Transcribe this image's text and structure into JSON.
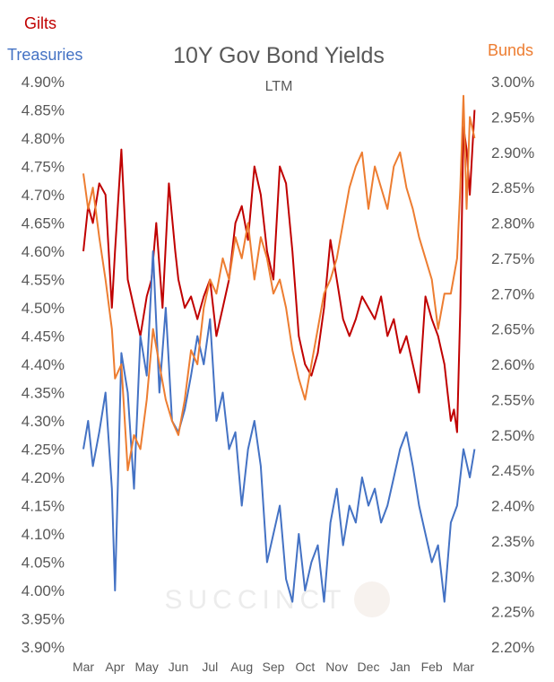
{
  "chart_data": {
    "type": "line",
    "title": "10Y Gov Bond Yields",
    "subtitle": "LTM",
    "watermark": "SUCCINCT",
    "categories": [
      "Mar",
      "Apr",
      "May",
      "Jun",
      "Jul",
      "Aug",
      "Sep",
      "Oct",
      "Nov",
      "Dec",
      "Jan",
      "Feb",
      "Mar"
    ],
    "left_axis": {
      "ylim": [
        3.9,
        4.9
      ],
      "ticks": [
        "3.90%",
        "3.95%",
        "4.00%",
        "4.05%",
        "4.10%",
        "4.15%",
        "4.20%",
        "4.25%",
        "4.30%",
        "4.35%",
        "4.40%",
        "4.45%",
        "4.50%",
        "4.55%",
        "4.60%",
        "4.65%",
        "4.70%",
        "4.75%",
        "4.80%",
        "4.85%",
        "4.90%"
      ]
    },
    "right_axis": {
      "ylim": [
        2.2,
        3.0
      ],
      "ticks": [
        "2.20%",
        "2.25%",
        "2.30%",
        "2.35%",
        "2.40%",
        "2.45%",
        "2.50%",
        "2.55%",
        "2.60%",
        "2.65%",
        "2.70%",
        "2.75%",
        "2.80%",
        "2.85%",
        "2.90%",
        "2.95%",
        "3.00%"
      ]
    },
    "series": [
      {
        "name": "Gilts",
        "axis": "left",
        "color": "#C00000",
        "x": [
          0,
          0.15,
          0.3,
          0.5,
          0.7,
          0.9,
          1.0,
          1.2,
          1.4,
          1.6,
          1.8,
          2.0,
          2.15,
          2.3,
          2.5,
          2.7,
          2.9,
          3.0,
          3.2,
          3.4,
          3.6,
          3.8,
          4.0,
          4.2,
          4.4,
          4.6,
          4.8,
          5.0,
          5.2,
          5.4,
          5.6,
          5.8,
          6.0,
          6.2,
          6.4,
          6.6,
          6.8,
          7.0,
          7.2,
          7.4,
          7.6,
          7.8,
          8.0,
          8.2,
          8.4,
          8.6,
          8.8,
          9.0,
          9.2,
          9.4,
          9.6,
          9.8,
          10.0,
          10.2,
          10.4,
          10.6,
          10.8,
          11.0,
          11.2,
          11.4,
          11.5,
          11.6,
          11.7,
          11.8,
          11.9,
          12.0,
          12.1,
          12.2,
          12.35
        ],
        "values": [
          4.6,
          4.68,
          4.65,
          4.72,
          4.7,
          4.5,
          4.6,
          4.78,
          4.55,
          4.5,
          4.45,
          4.52,
          4.55,
          4.65,
          4.5,
          4.72,
          4.6,
          4.55,
          4.5,
          4.52,
          4.48,
          4.52,
          4.55,
          4.45,
          4.5,
          4.55,
          4.65,
          4.68,
          4.62,
          4.75,
          4.7,
          4.6,
          4.55,
          4.75,
          4.72,
          4.6,
          4.45,
          4.4,
          4.38,
          4.42,
          4.5,
          4.62,
          4.55,
          4.48,
          4.45,
          4.48,
          4.52,
          4.5,
          4.48,
          4.52,
          4.45,
          4.48,
          4.42,
          4.45,
          4.4,
          4.35,
          4.52,
          4.48,
          4.45,
          4.4,
          4.35,
          4.3,
          4.32,
          4.28,
          4.5,
          4.82,
          4.78,
          4.7,
          4.85
        ]
      },
      {
        "name": "Treasuries",
        "axis": "left",
        "color": "#4472C4",
        "x": [
          0,
          0.15,
          0.3,
          0.5,
          0.7,
          0.9,
          1.0,
          1.2,
          1.4,
          1.6,
          1.8,
          2.0,
          2.2,
          2.4,
          2.6,
          2.8,
          3.0,
          3.2,
          3.4,
          3.6,
          3.8,
          4.0,
          4.2,
          4.4,
          4.6,
          4.8,
          5.0,
          5.2,
          5.4,
          5.6,
          5.8,
          6.0,
          6.2,
          6.4,
          6.6,
          6.8,
          7.0,
          7.2,
          7.4,
          7.6,
          7.8,
          8.0,
          8.2,
          8.4,
          8.6,
          8.8,
          9.0,
          9.2,
          9.4,
          9.6,
          9.8,
          10.0,
          10.2,
          10.4,
          10.6,
          10.8,
          11.0,
          11.2,
          11.4,
          11.6,
          11.8,
          12.0,
          12.2,
          12.35
        ],
        "values": [
          4.25,
          4.3,
          4.22,
          4.28,
          4.35,
          4.18,
          4.0,
          4.42,
          4.35,
          4.18,
          4.45,
          4.38,
          4.6,
          4.35,
          4.5,
          4.3,
          4.28,
          4.32,
          4.38,
          4.45,
          4.4,
          4.48,
          4.3,
          4.35,
          4.25,
          4.28,
          4.15,
          4.25,
          4.3,
          4.22,
          4.05,
          4.1,
          4.15,
          4.02,
          3.98,
          4.1,
          4.0,
          4.05,
          4.08,
          3.98,
          4.12,
          4.18,
          4.08,
          4.15,
          4.12,
          4.2,
          4.15,
          4.18,
          4.12,
          4.15,
          4.2,
          4.25,
          4.28,
          4.22,
          4.15,
          4.1,
          4.05,
          4.08,
          3.98,
          4.12,
          4.15,
          4.25,
          4.2,
          4.25
        ]
      },
      {
        "name": "Bunds",
        "axis": "right",
        "color": "#ED7D31",
        "x": [
          0,
          0.15,
          0.3,
          0.5,
          0.7,
          0.9,
          1.0,
          1.2,
          1.4,
          1.6,
          1.8,
          2.0,
          2.2,
          2.4,
          2.6,
          2.8,
          3.0,
          3.2,
          3.4,
          3.6,
          3.8,
          4.0,
          4.2,
          4.4,
          4.6,
          4.8,
          5.0,
          5.2,
          5.4,
          5.6,
          5.8,
          6.0,
          6.2,
          6.4,
          6.6,
          6.8,
          7.0,
          7.2,
          7.4,
          7.6,
          7.8,
          8.0,
          8.2,
          8.4,
          8.6,
          8.8,
          9.0,
          9.2,
          9.4,
          9.6,
          9.8,
          10.0,
          10.2,
          10.4,
          10.6,
          10.8,
          11.0,
          11.2,
          11.4,
          11.6,
          11.8,
          11.9,
          12.0,
          12.1,
          12.2,
          12.35
        ],
        "values": [
          2.87,
          2.82,
          2.85,
          2.78,
          2.72,
          2.65,
          2.58,
          2.6,
          2.45,
          2.5,
          2.48,
          2.55,
          2.65,
          2.6,
          2.55,
          2.52,
          2.5,
          2.55,
          2.62,
          2.6,
          2.68,
          2.72,
          2.7,
          2.75,
          2.72,
          2.78,
          2.75,
          2.8,
          2.72,
          2.78,
          2.75,
          2.7,
          2.72,
          2.68,
          2.62,
          2.58,
          2.55,
          2.6,
          2.65,
          2.7,
          2.72,
          2.75,
          2.8,
          2.85,
          2.88,
          2.9,
          2.82,
          2.88,
          2.85,
          2.82,
          2.88,
          2.9,
          2.85,
          2.82,
          2.78,
          2.75,
          2.72,
          2.65,
          2.7,
          2.7,
          2.75,
          2.85,
          2.98,
          2.82,
          2.95,
          2.92
        ]
      }
    ]
  }
}
